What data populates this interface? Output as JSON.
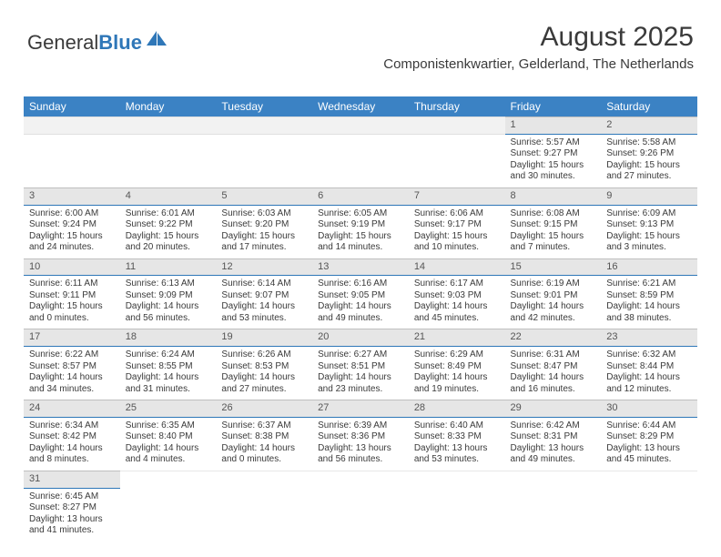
{
  "logo": {
    "part1": "General",
    "part2": "Blue"
  },
  "header": {
    "title": "August 2025",
    "subtitle": "Componistenkwartier, Gelderland, The Netherlands"
  },
  "colors": {
    "header_bg": "#3b82c4",
    "header_fg": "#ffffff",
    "daynum_bg": "#e6e6e6",
    "daynum_border_top": "#bfbfbf",
    "daynum_border_bottom": "#2f77b8",
    "text": "#3a3a3a",
    "logo_blue": "#2f77b8"
  },
  "typography": {
    "title_fontsize": 30,
    "subtitle_fontsize": 15,
    "th_fontsize": 12,
    "body_fontsize": 10
  },
  "weekdays": [
    "Sunday",
    "Monday",
    "Tuesday",
    "Wednesday",
    "Thursday",
    "Friday",
    "Saturday"
  ],
  "weeks": [
    [
      {
        "n": "",
        "sr": "",
        "ss": "",
        "dl": ""
      },
      {
        "n": "",
        "sr": "",
        "ss": "",
        "dl": ""
      },
      {
        "n": "",
        "sr": "",
        "ss": "",
        "dl": ""
      },
      {
        "n": "",
        "sr": "",
        "ss": "",
        "dl": ""
      },
      {
        "n": "",
        "sr": "",
        "ss": "",
        "dl": ""
      },
      {
        "n": "1",
        "sr": "Sunrise: 5:57 AM",
        "ss": "Sunset: 9:27 PM",
        "dl": "Daylight: 15 hours and 30 minutes."
      },
      {
        "n": "2",
        "sr": "Sunrise: 5:58 AM",
        "ss": "Sunset: 9:26 PM",
        "dl": "Daylight: 15 hours and 27 minutes."
      }
    ],
    [
      {
        "n": "3",
        "sr": "Sunrise: 6:00 AM",
        "ss": "Sunset: 9:24 PM",
        "dl": "Daylight: 15 hours and 24 minutes."
      },
      {
        "n": "4",
        "sr": "Sunrise: 6:01 AM",
        "ss": "Sunset: 9:22 PM",
        "dl": "Daylight: 15 hours and 20 minutes."
      },
      {
        "n": "5",
        "sr": "Sunrise: 6:03 AM",
        "ss": "Sunset: 9:20 PM",
        "dl": "Daylight: 15 hours and 17 minutes."
      },
      {
        "n": "6",
        "sr": "Sunrise: 6:05 AM",
        "ss": "Sunset: 9:19 PM",
        "dl": "Daylight: 15 hours and 14 minutes."
      },
      {
        "n": "7",
        "sr": "Sunrise: 6:06 AM",
        "ss": "Sunset: 9:17 PM",
        "dl": "Daylight: 15 hours and 10 minutes."
      },
      {
        "n": "8",
        "sr": "Sunrise: 6:08 AM",
        "ss": "Sunset: 9:15 PM",
        "dl": "Daylight: 15 hours and 7 minutes."
      },
      {
        "n": "9",
        "sr": "Sunrise: 6:09 AM",
        "ss": "Sunset: 9:13 PM",
        "dl": "Daylight: 15 hours and 3 minutes."
      }
    ],
    [
      {
        "n": "10",
        "sr": "Sunrise: 6:11 AM",
        "ss": "Sunset: 9:11 PM",
        "dl": "Daylight: 15 hours and 0 minutes."
      },
      {
        "n": "11",
        "sr": "Sunrise: 6:13 AM",
        "ss": "Sunset: 9:09 PM",
        "dl": "Daylight: 14 hours and 56 minutes."
      },
      {
        "n": "12",
        "sr": "Sunrise: 6:14 AM",
        "ss": "Sunset: 9:07 PM",
        "dl": "Daylight: 14 hours and 53 minutes."
      },
      {
        "n": "13",
        "sr": "Sunrise: 6:16 AM",
        "ss": "Sunset: 9:05 PM",
        "dl": "Daylight: 14 hours and 49 minutes."
      },
      {
        "n": "14",
        "sr": "Sunrise: 6:17 AM",
        "ss": "Sunset: 9:03 PM",
        "dl": "Daylight: 14 hours and 45 minutes."
      },
      {
        "n": "15",
        "sr": "Sunrise: 6:19 AM",
        "ss": "Sunset: 9:01 PM",
        "dl": "Daylight: 14 hours and 42 minutes."
      },
      {
        "n": "16",
        "sr": "Sunrise: 6:21 AM",
        "ss": "Sunset: 8:59 PM",
        "dl": "Daylight: 14 hours and 38 minutes."
      }
    ],
    [
      {
        "n": "17",
        "sr": "Sunrise: 6:22 AM",
        "ss": "Sunset: 8:57 PM",
        "dl": "Daylight: 14 hours and 34 minutes."
      },
      {
        "n": "18",
        "sr": "Sunrise: 6:24 AM",
        "ss": "Sunset: 8:55 PM",
        "dl": "Daylight: 14 hours and 31 minutes."
      },
      {
        "n": "19",
        "sr": "Sunrise: 6:26 AM",
        "ss": "Sunset: 8:53 PM",
        "dl": "Daylight: 14 hours and 27 minutes."
      },
      {
        "n": "20",
        "sr": "Sunrise: 6:27 AM",
        "ss": "Sunset: 8:51 PM",
        "dl": "Daylight: 14 hours and 23 minutes."
      },
      {
        "n": "21",
        "sr": "Sunrise: 6:29 AM",
        "ss": "Sunset: 8:49 PM",
        "dl": "Daylight: 14 hours and 19 minutes."
      },
      {
        "n": "22",
        "sr": "Sunrise: 6:31 AM",
        "ss": "Sunset: 8:47 PM",
        "dl": "Daylight: 14 hours and 16 minutes."
      },
      {
        "n": "23",
        "sr": "Sunrise: 6:32 AM",
        "ss": "Sunset: 8:44 PM",
        "dl": "Daylight: 14 hours and 12 minutes."
      }
    ],
    [
      {
        "n": "24",
        "sr": "Sunrise: 6:34 AM",
        "ss": "Sunset: 8:42 PM",
        "dl": "Daylight: 14 hours and 8 minutes."
      },
      {
        "n": "25",
        "sr": "Sunrise: 6:35 AM",
        "ss": "Sunset: 8:40 PM",
        "dl": "Daylight: 14 hours and 4 minutes."
      },
      {
        "n": "26",
        "sr": "Sunrise: 6:37 AM",
        "ss": "Sunset: 8:38 PM",
        "dl": "Daylight: 14 hours and 0 minutes."
      },
      {
        "n": "27",
        "sr": "Sunrise: 6:39 AM",
        "ss": "Sunset: 8:36 PM",
        "dl": "Daylight: 13 hours and 56 minutes."
      },
      {
        "n": "28",
        "sr": "Sunrise: 6:40 AM",
        "ss": "Sunset: 8:33 PM",
        "dl": "Daylight: 13 hours and 53 minutes."
      },
      {
        "n": "29",
        "sr": "Sunrise: 6:42 AM",
        "ss": "Sunset: 8:31 PM",
        "dl": "Daylight: 13 hours and 49 minutes."
      },
      {
        "n": "30",
        "sr": "Sunrise: 6:44 AM",
        "ss": "Sunset: 8:29 PM",
        "dl": "Daylight: 13 hours and 45 minutes."
      }
    ],
    [
      {
        "n": "31",
        "sr": "Sunrise: 6:45 AM",
        "ss": "Sunset: 8:27 PM",
        "dl": "Daylight: 13 hours and 41 minutes."
      },
      {
        "n": "",
        "sr": "",
        "ss": "",
        "dl": ""
      },
      {
        "n": "",
        "sr": "",
        "ss": "",
        "dl": ""
      },
      {
        "n": "",
        "sr": "",
        "ss": "",
        "dl": ""
      },
      {
        "n": "",
        "sr": "",
        "ss": "",
        "dl": ""
      },
      {
        "n": "",
        "sr": "",
        "ss": "",
        "dl": ""
      },
      {
        "n": "",
        "sr": "",
        "ss": "",
        "dl": ""
      }
    ]
  ]
}
